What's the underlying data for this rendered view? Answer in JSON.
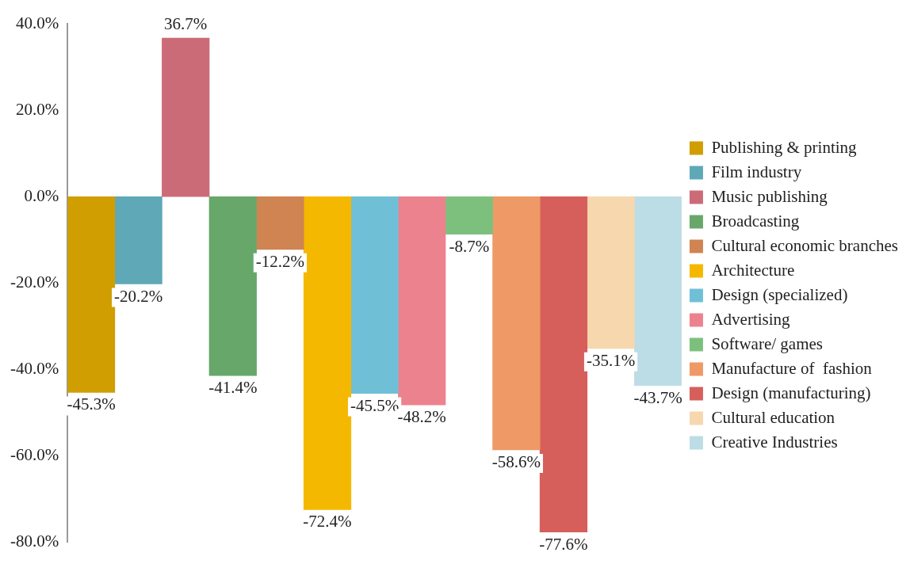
{
  "chart_data": {
    "type": "bar",
    "categories": [
      null
    ],
    "series": [
      {
        "name": "Publishing & printing",
        "color": "#d09e00",
        "values": [
          -45.3
        ],
        "value_labels": [
          "-45.3%"
        ]
      },
      {
        "name": "Film industry",
        "color": "#5fa8b8",
        "values": [
          -20.2
        ],
        "value_labels": [
          "-20.2%"
        ]
      },
      {
        "name": "Music publishing",
        "color": "#cc6b78",
        "values": [
          36.7
        ],
        "value_labels": [
          "36.7%"
        ]
      },
      {
        "name": "Broadcasting",
        "color": "#68a76a",
        "values": [
          -41.4
        ],
        "value_labels": [
          "-41.4%"
        ]
      },
      {
        "name": "Cultural economic branches",
        "color": "#cf8452",
        "values": [
          -12.2
        ],
        "value_labels": [
          "-12.2%"
        ]
      },
      {
        "name": "Architecture",
        "color": "#f5b800",
        "values": [
          -72.4
        ],
        "value_labels": [
          "-72.4%"
        ]
      },
      {
        "name": "Design (specialized)",
        "color": "#6fc0d6",
        "values": [
          -45.5
        ],
        "value_labels": [
          "-45.5%"
        ]
      },
      {
        "name": "Advertising",
        "color": "#ec828e",
        "values": [
          -48.2
        ],
        "value_labels": [
          "-48.2%"
        ]
      },
      {
        "name": "Software/ games",
        "color": "#7dc07d",
        "values": [
          -8.7
        ],
        "value_labels": [
          "-8.7%"
        ]
      },
      {
        "name": "Manufacture of  fashion",
        "color": "#ee9966",
        "values": [
          -58.6
        ],
        "value_labels": [
          "-58.6%"
        ]
      },
      {
        "name": "Design (manufacturing)",
        "color": "#d65f5c",
        "values": [
          -77.6
        ],
        "value_labels": [
          "-77.6%"
        ]
      },
      {
        "name": "Cultural education",
        "color": "#f6d7ae",
        "values": [
          -35.1
        ],
        "value_labels": [
          "-35.1%"
        ]
      },
      {
        "name": "Creative Industries",
        "color": "#bcdde6",
        "values": [
          -43.7
        ],
        "value_labels": [
          "-43.7%"
        ]
      }
    ],
    "ylim": [
      -80,
      40
    ],
    "yticks": [
      {
        "value": -80,
        "label": "-80.0%"
      },
      {
        "value": -60,
        "label": "-60.0%"
      },
      {
        "value": -40,
        "label": "-40.0%"
      },
      {
        "value": -20,
        "label": "-20.0%"
      },
      {
        "value": 0,
        "label": "0.0%"
      },
      {
        "value": 20,
        "label": "20.0%"
      },
      {
        "value": 40,
        "label": "40.0%"
      }
    ],
    "grid": false,
    "legend": "right"
  }
}
